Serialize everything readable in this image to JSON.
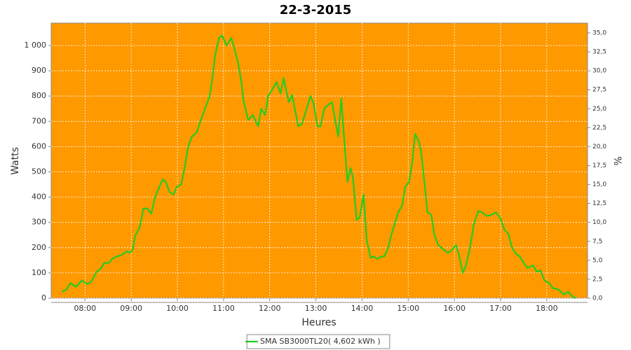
{
  "chart_data": {
    "type": "line",
    "title": "22-3-2015",
    "x_label": "Heures",
    "y_label": "Watts",
    "y2_label": "%",
    "x": [
      "07:30",
      "07:36",
      "07:41",
      "07:48",
      "07:56",
      "08:03",
      "08:08",
      "08:15",
      "08:20",
      "08:25",
      "08:31",
      "08:35",
      "08:41",
      "08:47",
      "08:54",
      "08:58",
      "09:02",
      "09:05",
      "09:11",
      "09:16",
      "09:21",
      "09:26",
      "09:31",
      "09:35",
      "09:41",
      "09:45",
      "09:50",
      "09:55",
      "09:59",
      "10:05",
      "10:09",
      "10:14",
      "10:19",
      "10:25",
      "10:30",
      "10:36",
      "10:42",
      "10:45",
      "10:49",
      "10:54",
      "10:58",
      "11:04",
      "11:10",
      "11:14",
      "11:19",
      "11:23",
      "11:26",
      "11:32",
      "11:38",
      "11:45",
      "11:49",
      "11:54",
      "11:58",
      "12:04",
      "12:09",
      "12:14",
      "12:18",
      "12:25",
      "12:29",
      "12:34",
      "12:37",
      "12:42",
      "12:47",
      "12:53",
      "12:57",
      "13:02",
      "13:06",
      "13:11",
      "13:16",
      "13:21",
      "13:25",
      "13:29",
      "13:33",
      "13:36",
      "13:41",
      "13:45",
      "13:48",
      "13:53",
      "13:57",
      "14:02",
      "14:06",
      "14:11",
      "14:15",
      "14:20",
      "14:25",
      "14:29",
      "14:34",
      "14:38",
      "14:43",
      "14:47",
      "14:52",
      "14:56",
      "15:01",
      "15:05",
      "15:09",
      "15:14",
      "15:17",
      "15:21",
      "15:25",
      "15:30",
      "15:34",
      "15:39",
      "15:45",
      "15:51",
      "15:55",
      "16:02",
      "16:06",
      "16:11",
      "16:15",
      "16:20",
      "16:25",
      "16:31",
      "16:36",
      "16:42",
      "16:48",
      "16:54",
      "17:00",
      "17:05",
      "17:10",
      "17:15",
      "17:20",
      "17:25",
      "17:30",
      "17:35",
      "17:42",
      "17:47",
      "17:52",
      "17:57",
      "18:03",
      "18:08",
      "18:15",
      "18:22",
      "18:28",
      "18:34",
      "18:38"
    ],
    "series": [
      {
        "name": "SMA SB3000TL20( 4,602 kWh )",
        "color": "#22cc22",
        "values": [
          25,
          35,
          60,
          45,
          70,
          55,
          65,
          105,
          115,
          140,
          140,
          155,
          165,
          170,
          185,
          180,
          190,
          245,
          280,
          355,
          355,
          335,
          400,
          430,
          470,
          460,
          420,
          410,
          440,
          450,
          510,
          600,
          640,
          655,
          700,
          750,
          800,
          860,
          960,
          1030,
          1040,
          1000,
          1030,
          990,
          930,
          860,
          780,
          705,
          725,
          680,
          750,
          725,
          800,
          830,
          855,
          810,
          870,
          775,
          805,
          730,
          680,
          690,
          740,
          800,
          770,
          680,
          680,
          750,
          765,
          775,
          705,
          640,
          790,
          660,
          460,
          515,
          480,
          310,
          320,
          410,
          230,
          160,
          165,
          155,
          165,
          165,
          200,
          250,
          300,
          340,
          365,
          440,
          460,
          535,
          650,
          620,
          575,
          460,
          340,
          330,
          250,
          210,
          195,
          180,
          185,
          210,
          170,
          100,
          130,
          195,
          290,
          345,
          340,
          325,
          330,
          340,
          315,
          270,
          255,
          200,
          175,
          165,
          140,
          120,
          130,
          105,
          110,
          70,
          60,
          40,
          35,
          15,
          25,
          5,
          0
        ]
      }
    ],
    "xlim": [
      "07:16",
      "18:53"
    ],
    "xticks": [
      "08:00",
      "09:00",
      "10:00",
      "11:00",
      "12:00",
      "13:00",
      "14:00",
      "15:00",
      "16:00",
      "17:00",
      "18:00"
    ],
    "ylim": [
      0,
      1088.6
    ],
    "yticks": [
      0,
      100,
      200,
      300,
      400,
      500,
      600,
      700,
      800,
      900,
      {
        "value": 1000,
        "label": "1 000"
      }
    ],
    "y2lim": [
      0,
      36.29
    ],
    "y2ticks": [
      {
        "value": 0,
        "label": "0,0"
      },
      {
        "value": 2.5,
        "label": "2,5"
      },
      {
        "value": 5,
        "label": "5,0"
      },
      {
        "value": 7.5,
        "label": "7,5"
      },
      {
        "value": 10,
        "label": "10,0"
      },
      {
        "value": 12.5,
        "label": "12,5"
      },
      {
        "value": 15,
        "label": "15,0"
      },
      {
        "value": 17.5,
        "label": "17,5"
      },
      {
        "value": 20,
        "label": "20,0"
      },
      {
        "value": 22.5,
        "label": "22,5"
      },
      {
        "value": 25,
        "label": "25,0"
      },
      {
        "value": 27.5,
        "label": "27,5"
      },
      {
        "value": 30,
        "label": "30,0"
      },
      {
        "value": 32.5,
        "label": "32,5"
      },
      {
        "value": 35,
        "label": "35,0"
      }
    ],
    "grid": true,
    "background": "#ff9900",
    "legend": "bottom"
  }
}
